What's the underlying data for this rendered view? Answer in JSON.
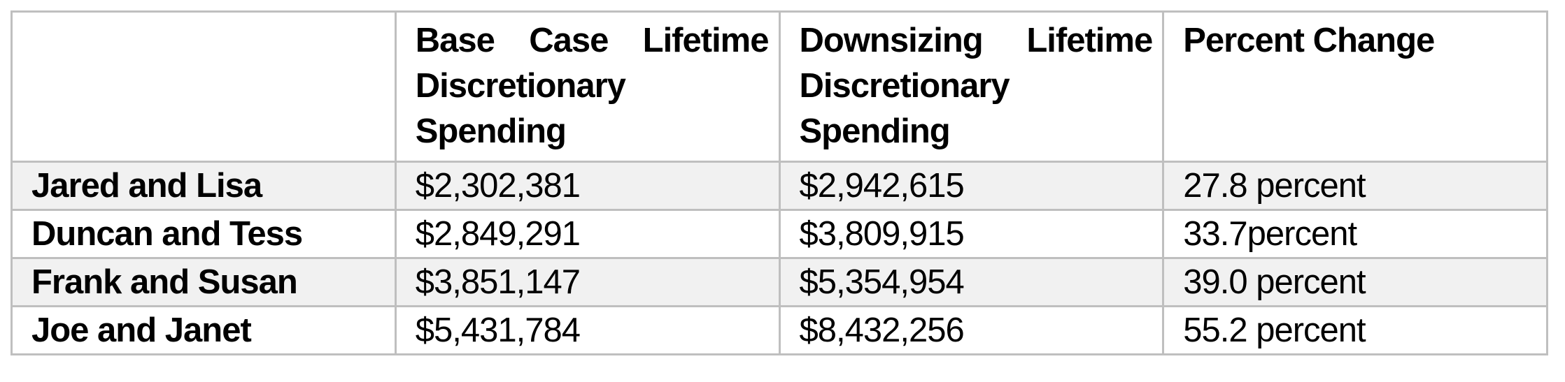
{
  "table": {
    "columns": [
      {
        "key": "name",
        "label": ""
      },
      {
        "key": "base_case",
        "label": "Base Case Lifetime Discretionary Spending"
      },
      {
        "key": "downsizing",
        "label": "Downsizing Lifetime Discretionary Spending"
      },
      {
        "key": "percent_change",
        "label": "Percent Change"
      }
    ],
    "rows": [
      {
        "name": "Jared and Lisa",
        "base_case": "$2,302,381",
        "downsizing": "$2,942,615",
        "percent_change": "27.8 percent"
      },
      {
        "name": "Duncan and Tess",
        "base_case": "$2,849,291",
        "downsizing": "$3,809,915",
        "percent_change": "33.7percent"
      },
      {
        "name": "Frank and Susan",
        "base_case": "$3,851,147",
        "downsizing": "$5,354,954",
        "percent_change": "39.0 percent"
      },
      {
        "name": "Joe and Janet",
        "base_case": "$5,431,784",
        "downsizing": "$8,432,256",
        "percent_change": "55.2 percent"
      }
    ],
    "colors": {
      "border": "#bfbfbf",
      "shaded_row": "#f1f1f1",
      "text": "#000000",
      "background": "#ffffff"
    }
  }
}
